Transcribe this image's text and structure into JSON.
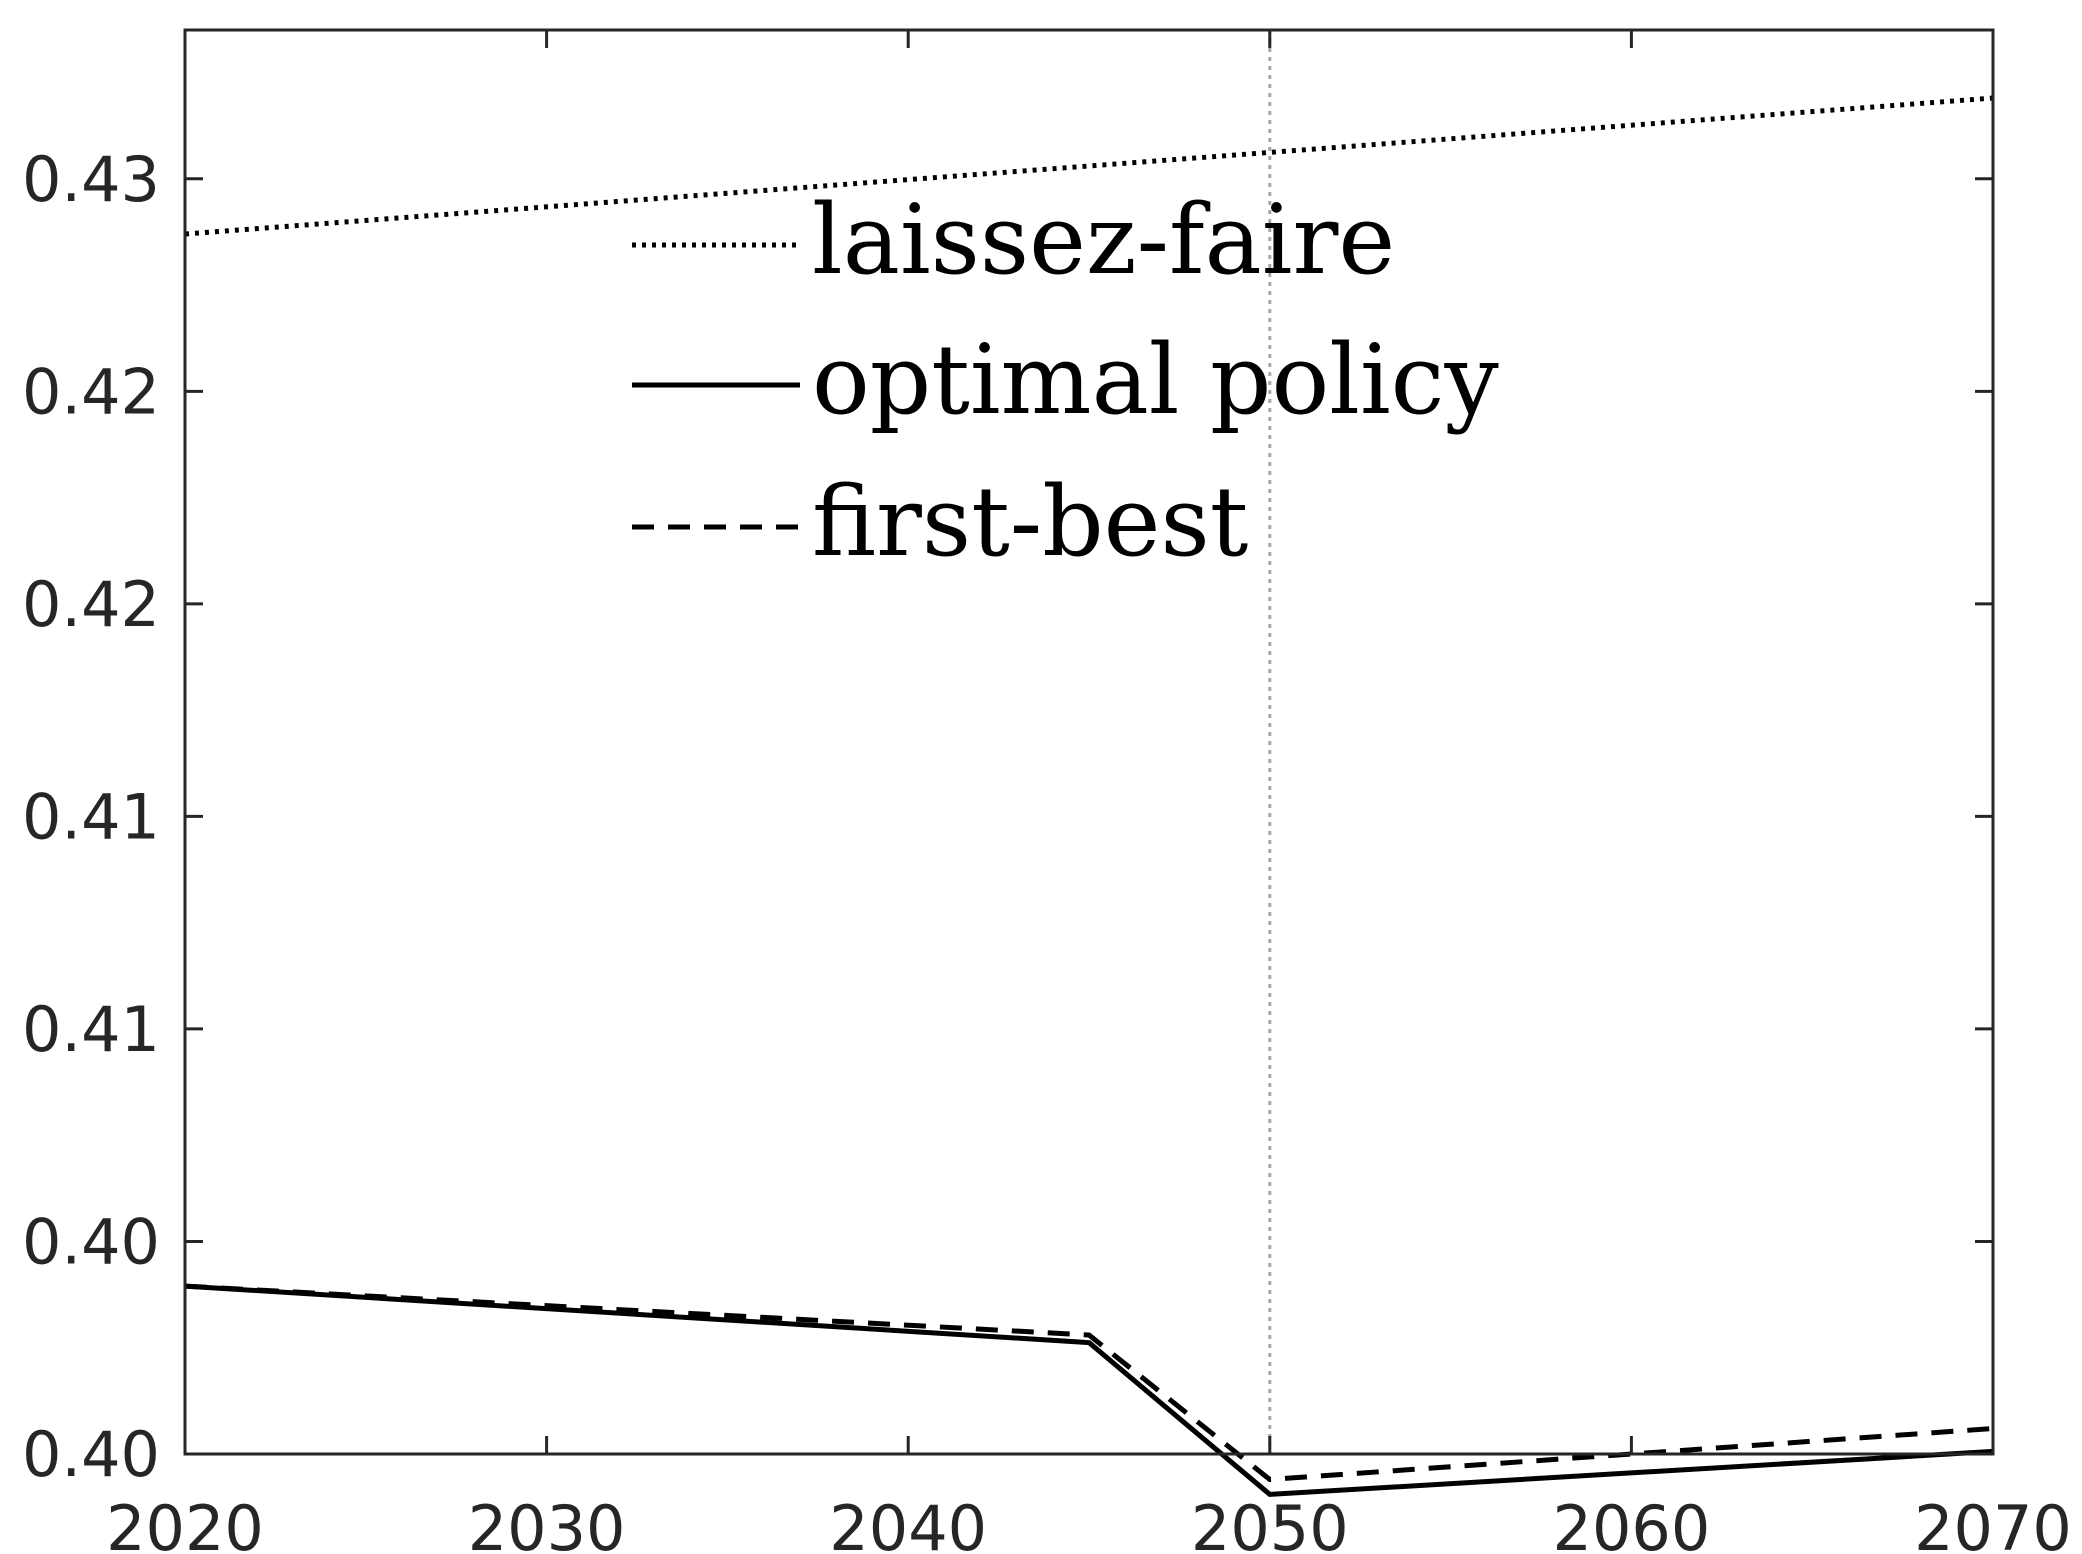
{
  "chart_data": {
    "type": "line",
    "title": "",
    "xlabel": "",
    "ylabel": "",
    "xlim": [
      2020,
      2070
    ],
    "ylim": [
      0.4,
      0.4335
    ],
    "xticks": [
      2020,
      2030,
      2040,
      2050,
      2060,
      2070
    ],
    "xtick_labels": [
      "2020",
      "2030",
      "2040",
      "2050",
      "2060",
      "2070"
    ],
    "yticks": [
      0.4,
      0.405,
      0.41,
      0.415,
      0.42,
      0.425,
      0.43,
      0.435
    ],
    "ytick_labels": [
      "0.40",
      "0.40",
      "0.41",
      "0.41",
      "0.42",
      "0.42",
      "0.43",
      "0.43"
    ],
    "reference_line": {
      "x": 2050,
      "style": "dotted",
      "color": "#a6a6a6"
    },
    "legend_position": "upper-center",
    "grid": false,
    "series": [
      {
        "name": "laissez-faire",
        "style": "dotted",
        "color": "#000000",
        "x": [
          2020,
          2070
        ],
        "y": [
          0.4287,
          0.4319
        ]
      },
      {
        "name": "optimal policy",
        "style": "solid",
        "color": "#000000",
        "x": [
          2020,
          2045,
          2050,
          2070
        ],
        "y": [
          0.40395,
          0.40262,
          0.39905,
          0.40006
        ]
      },
      {
        "name": "first-best",
        "style": "dashed",
        "color": "#000000",
        "x": [
          2020,
          2045,
          2050,
          2070
        ],
        "y": [
          0.40395,
          0.4028,
          0.3994,
          0.4006
        ]
      }
    ]
  }
}
